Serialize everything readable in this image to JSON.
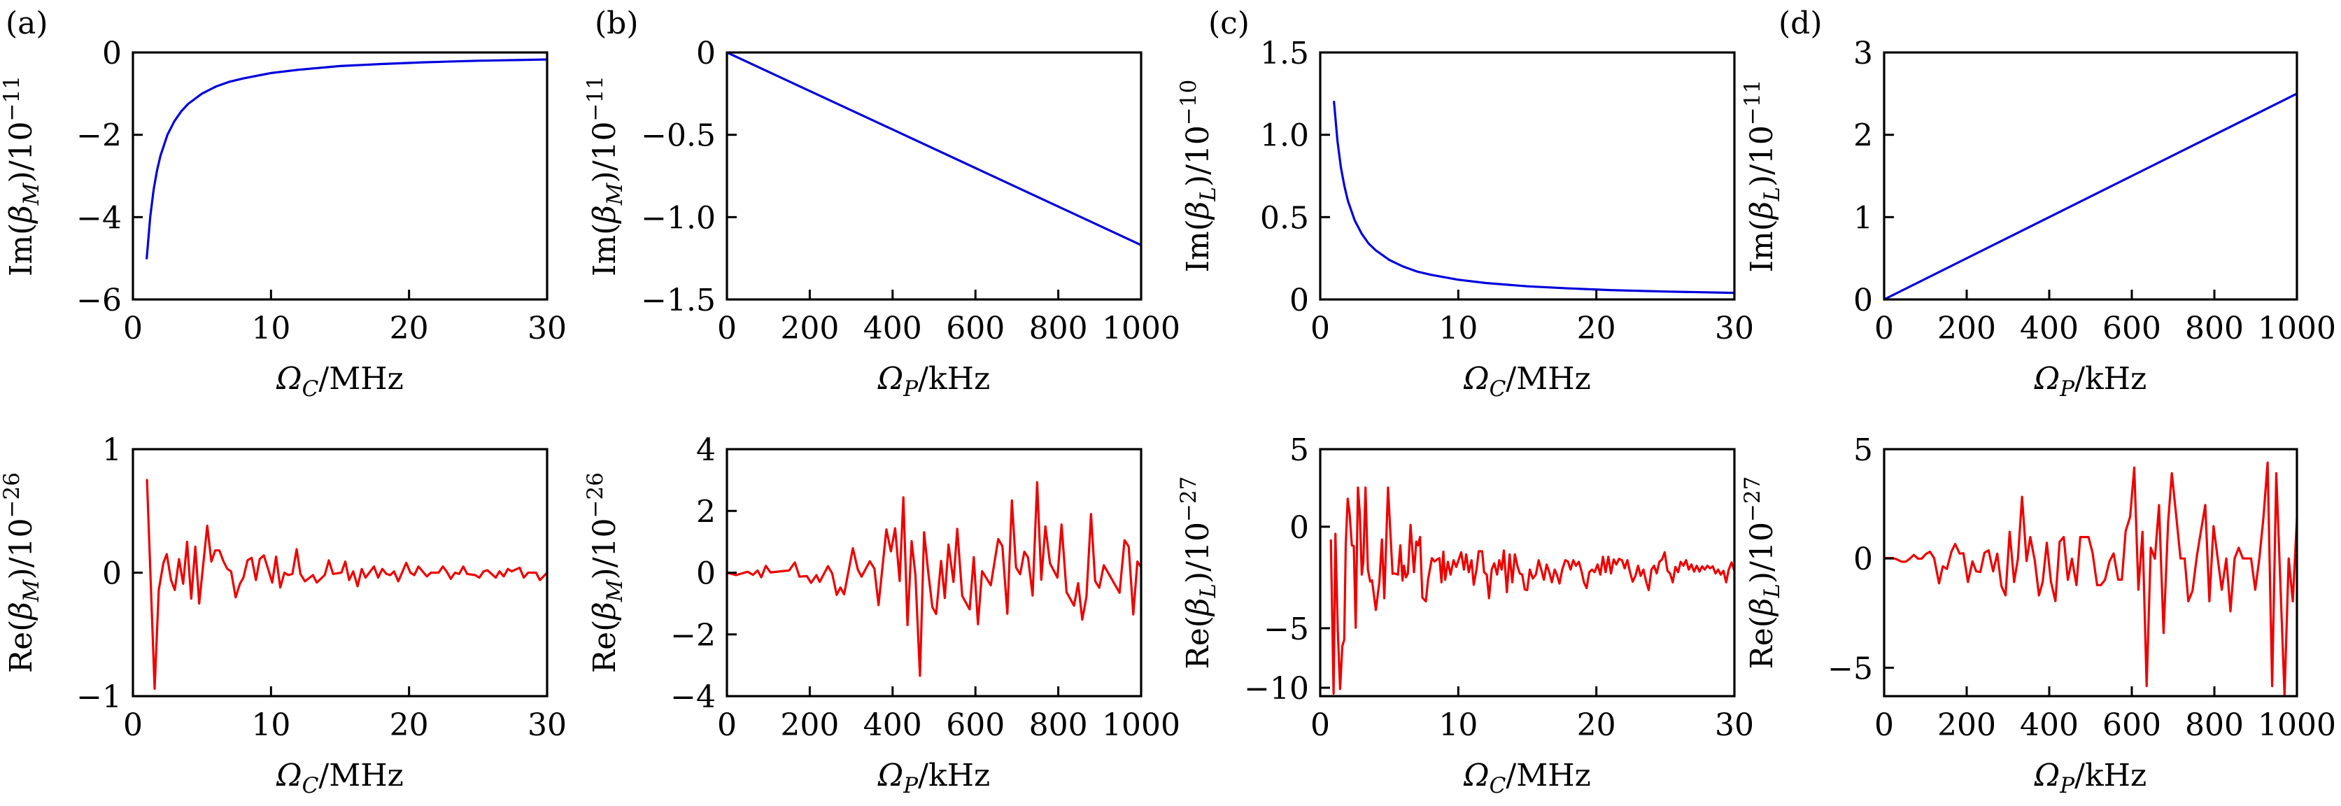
{
  "colors": {
    "imag_line": "#0000dd",
    "real_line": "#ee0000",
    "axes": "#000000"
  },
  "chart_data": [
    {
      "id": "a-top",
      "panel_label": "(a)",
      "type": "line",
      "series_color": "imag_line",
      "xlabel": {
        "symbol": "Ω",
        "sub": "C",
        "unit": "/MHz"
      },
      "ylabel": {
        "pre": "Im(",
        "symbol": "β",
        "sub": "M",
        "post": ")/10",
        "sup": "−11"
      },
      "xlim": [
        0,
        30
      ],
      "ylim": [
        -6,
        0
      ],
      "xticks": [
        0,
        10,
        20,
        30
      ],
      "xtick_labels": [
        "0",
        "10",
        "20",
        "30"
      ],
      "yticks": [
        0,
        -2,
        -4,
        -6
      ],
      "ytick_labels": [
        "0",
        "−2",
        "−4",
        "−6"
      ],
      "x": [
        1,
        1.25,
        1.5,
        1.75,
        2,
        2.5,
        3,
        3.5,
        4,
        5,
        6,
        7,
        8,
        10,
        12,
        15,
        18,
        21,
        25,
        30
      ],
      "y": [
        -5,
        -4,
        -3.33,
        -2.86,
        -2.5,
        -2,
        -1.67,
        -1.43,
        -1.25,
        -1,
        -0.83,
        -0.71,
        -0.63,
        -0.5,
        -0.42,
        -0.33,
        -0.28,
        -0.24,
        -0.2,
        -0.17
      ]
    },
    {
      "id": "b-top",
      "panel_label": "(b)",
      "type": "line",
      "series_color": "imag_line",
      "xlabel": {
        "symbol": "Ω",
        "sub": "P",
        "unit": "/kHz"
      },
      "ylabel": {
        "pre": "Im(",
        "symbol": "β",
        "sub": "M",
        "post": ")/10",
        "sup": "−11"
      },
      "xlim": [
        0,
        1000
      ],
      "ylim": [
        -1.5,
        0
      ],
      "xticks": [
        0,
        200,
        400,
        600,
        800,
        1000
      ],
      "xtick_labels": [
        "0",
        "200",
        "400",
        "600",
        "800",
        "1000"
      ],
      "yticks": [
        0,
        -0.5,
        -1.0,
        -1.5
      ],
      "ytick_labels": [
        "0",
        "−0.5",
        "−1.0",
        "−1.5"
      ],
      "x": [
        0,
        1000
      ],
      "y": [
        0,
        -1.17
      ]
    },
    {
      "id": "c-top",
      "panel_label": "(c)",
      "type": "line",
      "series_color": "imag_line",
      "xlabel": {
        "symbol": "Ω",
        "sub": "C",
        "unit": "/MHz"
      },
      "ylabel": {
        "pre": "Im(",
        "symbol": "β",
        "sub": "L",
        "post": ")/10",
        "sup": "−10"
      },
      "xlim": [
        0,
        30
      ],
      "ylim": [
        0,
        1.5
      ],
      "xticks": [
        0,
        10,
        20,
        30
      ],
      "xtick_labels": [
        "0",
        "10",
        "20",
        "30"
      ],
      "yticks": [
        1.5,
        1.0,
        0.5,
        0
      ],
      "ytick_labels": [
        "1.5",
        "1.0",
        "0.5",
        "0"
      ],
      "x": [
        1,
        1.25,
        1.5,
        1.75,
        2,
        2.5,
        3,
        3.5,
        4,
        5,
        6,
        7,
        8,
        10,
        12,
        15,
        18,
        21,
        25,
        30
      ],
      "y": [
        1.2,
        0.96,
        0.8,
        0.69,
        0.6,
        0.48,
        0.4,
        0.34,
        0.3,
        0.24,
        0.2,
        0.17,
        0.15,
        0.12,
        0.1,
        0.08,
        0.067,
        0.057,
        0.048,
        0.04
      ]
    },
    {
      "id": "d-top",
      "panel_label": "(d)",
      "type": "line",
      "series_color": "imag_line",
      "xlabel": {
        "symbol": "Ω",
        "sub": "P",
        "unit": "/kHz"
      },
      "ylabel": {
        "pre": "Im(",
        "symbol": "β",
        "sub": "L",
        "post": ")/10",
        "sup": "−11"
      },
      "xlim": [
        0,
        1000
      ],
      "ylim": [
        0,
        3
      ],
      "xticks": [
        0,
        200,
        400,
        600,
        800,
        1000
      ],
      "xtick_labels": [
        "0",
        "200",
        "400",
        "600",
        "800",
        "1000"
      ],
      "yticks": [
        3,
        2,
        1,
        0
      ],
      "ytick_labels": [
        "3",
        "2",
        "1",
        "0"
      ],
      "x": [
        0,
        1000
      ],
      "y": [
        0,
        2.5
      ]
    },
    {
      "id": "a-bottom",
      "type": "line",
      "series_color": "real_line",
      "xlabel": {
        "symbol": "Ω",
        "sub": "C",
        "unit": "/MHz"
      },
      "ylabel": {
        "pre": "Re(",
        "symbol": "β",
        "sub": "M",
        "post": ")/10",
        "sup": "−26"
      },
      "xlim": [
        0,
        30
      ],
      "ylim": [
        -1,
        1
      ],
      "xticks": [
        0,
        10,
        20,
        30
      ],
      "xtick_labels": [
        "0",
        "10",
        "20",
        "30"
      ],
      "yticks": [
        1,
        0,
        -1
      ],
      "ytick_labels": [
        "1",
        "0",
        "−1"
      ],
      "x": [
        1.02,
        1.57,
        1.87,
        2.21,
        2.45,
        2.76,
        3.03,
        3.34,
        3.64,
        3.92,
        4.22,
        4.52,
        4.8,
        5.38,
        5.68,
        5.96,
        6.26,
        6.56,
        6.84,
        7.11,
        7.44,
        7.75,
        8.0,
        8.3,
        8.6,
        8.91,
        9.18,
        9.48,
        9.79,
        10.09,
        10.37,
        10.67,
        10.97,
        11.25,
        11.55,
        11.86,
        12.13,
        12.46,
        13.04,
        13.32,
        13.89,
        14.19,
        14.5,
        15.1,
        15.38,
        15.66,
        15.96,
        16.27,
        16.57,
        16.85,
        17.46,
        17.76,
        18.06,
        18.36,
        18.64,
        18.91,
        19.22,
        19.8,
        20.1,
        20.38,
        20.68,
        21.29,
        21.59,
        22.14,
        22.45,
        22.72,
        23.02,
        23.33,
        23.63,
        23.93,
        24.21,
        24.79,
        25.09,
        25.4,
        25.67,
        26.28,
        26.55,
        26.86,
        27.16,
        27.43,
        28.01,
        28.31,
        28.62,
        29.2,
        29.48,
        30.0
      ],
      "y": [
        0.75,
        -0.94,
        -0.14,
        0.08,
        0.15,
        -0.06,
        -0.14,
        0.11,
        -0.09,
        0.25,
        -0.21,
        0.21,
        -0.25,
        0.38,
        0.09,
        0.18,
        0.18,
        0.09,
        0.03,
        0.01,
        -0.2,
        -0.09,
        -0.04,
        0.1,
        0.12,
        -0.06,
        0.11,
        0.14,
        0.03,
        -0.08,
        0.13,
        -0.12,
        0.0,
        -0.02,
        -0.01,
        0.19,
        -0.01,
        -0.07,
        -0.02,
        -0.08,
        -0.02,
        0.1,
        -0.01,
        0.0,
        0.09,
        -0.06,
        0.01,
        -0.11,
        0.03,
        -0.04,
        0.05,
        -0.04,
        0.03,
        -0.01,
        -0.02,
        0.01,
        -0.07,
        0.08,
        0.0,
        -0.02,
        0.05,
        -0.03,
        0.0,
        0.0,
        0.05,
        0.01,
        -0.05,
        0.0,
        -0.01,
        0.05,
        -0.01,
        -0.02,
        -0.04,
        0.01,
        0.02,
        -0.04,
        0.01,
        -0.03,
        0.03,
        0.01,
        0.04,
        -0.04,
        0.0,
        0.0,
        -0.06,
        0.0
      ]
    },
    {
      "id": "b-bottom",
      "type": "line",
      "series_color": "real_line",
      "xlabel": {
        "symbol": "Ω",
        "sub": "P",
        "unit": "/kHz"
      },
      "ylabel": {
        "pre": "Re(",
        "symbol": "β",
        "sub": "M",
        "post": ")/10",
        "sup": "−26"
      },
      "xlim": [
        0,
        1000
      ],
      "ylim": [
        -4,
        4
      ],
      "xticks": [
        0,
        200,
        400,
        600,
        800,
        1000
      ],
      "xtick_labels": [
        "0",
        "200",
        "400",
        "600",
        "800",
        "1000"
      ],
      "yticks": [
        4,
        2,
        0,
        -2,
        -4
      ],
      "ytick_labels": [
        "4",
        "2",
        "0",
        "−2",
        "−4"
      ],
      "x": [
        0,
        22,
        50,
        63,
        74,
        83,
        94,
        105,
        150,
        164,
        175,
        193,
        203,
        216,
        224,
        244,
        254,
        265,
        274,
        283,
        304,
        316,
        325,
        345,
        356,
        366,
        385,
        396,
        406,
        417,
        426,
        436,
        446,
        455,
        466,
        476,
        486,
        496,
        505,
        517,
        526,
        535,
        547,
        556,
        568,
        586,
        596,
        606,
        616,
        637,
        655,
        665,
        677,
        688,
        698,
        708,
        718,
        727,
        738,
        749,
        759,
        769,
        780,
        798,
        808,
        820,
        838,
        848,
        858,
        868,
        879,
        889,
        899,
        910,
        948,
        960,
        970,
        981,
        991,
        1000
      ],
      "y": [
        0,
        -0.08,
        0.03,
        -0.07,
        0.07,
        -0.15,
        0.22,
        0.01,
        0.07,
        0.33,
        -0.13,
        -0.11,
        -0.33,
        -0.08,
        -0.3,
        0.21,
        -0.02,
        -0.72,
        -0.48,
        -0.7,
        0.79,
        0.1,
        -0.13,
        0.37,
        0.13,
        -1.05,
        1.4,
        0.69,
        1.44,
        -0.27,
        2.44,
        -1.7,
        1.02,
        -0.07,
        -3.34,
        1.31,
        0.02,
        -1.11,
        -1.34,
        0.38,
        -0.82,
        0.91,
        -0.3,
        1.42,
        -0.75,
        -1.19,
        0.5,
        -1.67,
        0.05,
        -0.41,
        1.09,
        0.86,
        -1.33,
        2.34,
        0.17,
        -0.05,
        0.68,
        0.49,
        -0.74,
        2.93,
        -0.23,
        1.5,
        0.3,
        -0.16,
        1.56,
        -0.63,
        -1.07,
        -0.34,
        -1.52,
        -0.77,
        1.9,
        -0.27,
        -0.49,
        0.24,
        -0.65,
        1.05,
        0.85,
        -1.35,
        0.36,
        0.18
      ]
    },
    {
      "id": "c-bottom",
      "type": "line",
      "series_color": "real_line",
      "xlabel": {
        "symbol": "Ω",
        "sub": "C",
        "unit": "/MHz"
      },
      "ylabel": {
        "pre": "Re(",
        "symbol": "β",
        "sub": "L",
        "post": ")/10",
        "sup": "−27"
      },
      "xlim": [
        0,
        30
      ],
      "ylim": [
        -12,
        5
      ],
      "xticks": [
        0,
        10,
        20,
        30
      ],
      "xtick_labels": [
        "0",
        "10",
        "20",
        "30"
      ],
      "yticks": [
        5,
        0,
        -5,
        -10
      ],
      "ytick_labels": [
        "5",
        "0",
        "−5",
        "−10"
      ],
      "y_axis_note": "tick spacing is non-uniform in the figure",
      "x": [
        0.77,
        0.97,
        1.1,
        1.27,
        1.44,
        1.6,
        1.74,
        1.85,
        1.99,
        2.13,
        2.29,
        2.43,
        2.57,
        2.73,
        2.87,
        3.01,
        3.12,
        3.28,
        3.45,
        3.62,
        3.75,
        4.03,
        4.28,
        4.47,
        4.64,
        4.91,
        5.24,
        5.38,
        5.63,
        5.8,
        5.96,
        6.07,
        6.21,
        6.35,
        6.54,
        6.79,
        6.96,
        7.09,
        7.23,
        7.4,
        7.65,
        7.81,
        8.09,
        8.28,
        8.47,
        8.64,
        8.78,
        8.92,
        9.05,
        9.25,
        9.44,
        9.66,
        9.85,
        10.05,
        10.21,
        10.41,
        10.57,
        10.76,
        10.96,
        11.12,
        11.32,
        11.48,
        11.73,
        11.87,
        12.06,
        12.23,
        12.42,
        12.61,
        12.81,
        12.97,
        13.14,
        13.3,
        13.52,
        13.72,
        13.91,
        14.1,
        14.3,
        14.46,
        14.63,
        14.82,
        14.99,
        15.18,
        15.4,
        15.62,
        15.82,
        16.01,
        16.2,
        16.4,
        16.59,
        16.78,
        16.98,
        17.14,
        17.33,
        17.53,
        17.75,
        17.94,
        18.13,
        18.33,
        18.52,
        18.74,
        18.93,
        19.1,
        19.29,
        19.49,
        19.68,
        19.87,
        20.09,
        20.29,
        20.48,
        20.67,
        20.87,
        21.06,
        21.26,
        21.45,
        21.64,
        21.86,
        22.05,
        22.25,
        22.44,
        22.63,
        22.83,
        23.02,
        23.21,
        23.41,
        23.6,
        23.79,
        23.99,
        24.18,
        24.37,
        24.57,
        24.76,
        24.95,
        25.15,
        25.34,
        25.53,
        25.73,
        25.92,
        26.11,
        26.31,
        26.5,
        26.69,
        26.89,
        27.08,
        27.27,
        27.47,
        27.66,
        27.85,
        28.05,
        28.24,
        28.43,
        28.63,
        28.82,
        29.01,
        29.21,
        29.4,
        29.59,
        29.79,
        30.0
      ],
      "y": [
        -0.67,
        -11.4,
        -0.35,
        -5.2,
        -10.3,
        -6.5,
        -5.96,
        -0.85,
        1.81,
        0.86,
        -0.92,
        -0.95,
        -4.97,
        2.53,
        0.86,
        -2.36,
        -1.73,
        2.53,
        -2.11,
        -2.7,
        -2.64,
        -4.1,
        -2.74,
        -0.63,
        -3.52,
        2.53,
        -2.32,
        -2.3,
        -2.36,
        -0.92,
        -2.65,
        -1.92,
        -2.49,
        -2.3,
        0.12,
        -2.24,
        -0.73,
        -0.92,
        -0.5,
        -3.49,
        -3.68,
        -2.61,
        -1.55,
        -1.71,
        -1.61,
        -1.55,
        -2.74,
        -1.23,
        -2.61,
        -1.73,
        -2.36,
        -1.65,
        -1.98,
        -1.58,
        -1.26,
        -2.11,
        -1.36,
        -2.24,
        -1.65,
        -2.86,
        -2.11,
        -1.21,
        -1.21,
        -2.24,
        -2.36,
        -3.52,
        -2.11,
        -1.8,
        -2.36,
        -1.65,
        -2.11,
        -1.17,
        -3.22,
        -1.36,
        -2.74,
        -1.36,
        -1.98,
        -2.3,
        -2.36,
        -3.09,
        -3.12,
        -2.11,
        -2.55,
        -2.36,
        -1.65,
        -2.11,
        -2.61,
        -1.86,
        -2.24,
        -2.74,
        -2.11,
        -2.36,
        -2.8,
        -2.11,
        -1.65,
        -1.71,
        -2.11,
        -1.65,
        -1.92,
        -1.73,
        -2.21,
        -2.74,
        -3.02,
        -2.24,
        -2.11,
        -2.24,
        -1.86,
        -2.36,
        -1.48,
        -2.24,
        -1.48,
        -2.3,
        -1.61,
        -1.86,
        -1.58,
        -1.65,
        -2.05,
        -1.65,
        -2.24,
        -2.71,
        -2.42,
        -1.92,
        -2.42,
        -2.11,
        -2.68,
        -3.12,
        -2.11,
        -1.92,
        -2.3,
        -1.73,
        -1.61,
        -1.26,
        -2.17,
        -2.3,
        -2.74,
        -1.98,
        -2.24,
        -1.73,
        -1.92,
        -1.65,
        -2.11,
        -1.86,
        -2.21,
        -1.92,
        -2.21,
        -1.95,
        -2.11,
        -1.92,
        -2.05,
        -1.95,
        -2.3,
        -2.11,
        -2.36,
        -2.17,
        -2.74,
        -2.11,
        -1.76,
        -2.17
      ]
    },
    {
      "id": "d-bottom",
      "type": "line",
      "series_color": "real_line",
      "xlabel": {
        "symbol": "Ω",
        "sub": "P",
        "unit": "/kHz"
      },
      "ylabel": {
        "pre": "Re(",
        "symbol": "β",
        "sub": "L",
        "post": ")/10",
        "sup": "−27"
      },
      "xlim": [
        0,
        1000
      ],
      "ylim": [
        -6.3,
        5
      ],
      "xticks": [
        0,
        200,
        400,
        600,
        800,
        1000
      ],
      "xtick_labels": [
        "0",
        "200",
        "400",
        "600",
        "800",
        "1000"
      ],
      "yticks": [
        5,
        0,
        -5
      ],
      "ytick_labels": [
        "5",
        "0",
        "−5"
      ],
      "x": [
        0,
        20,
        29,
        43,
        52,
        61,
        72,
        82,
        91,
        101,
        111,
        121,
        133,
        142,
        152,
        163,
        172,
        183,
        192,
        203,
        214,
        223,
        233,
        243,
        253,
        264,
        274,
        284,
        294,
        304,
        315,
        324,
        334,
        345,
        354,
        365,
        375,
        384,
        394,
        404,
        415,
        425,
        435,
        445,
        455,
        466,
        475,
        495,
        505,
        516,
        525,
        535,
        546,
        556,
        567,
        576,
        585,
        596,
        606,
        616,
        626,
        636,
        646,
        656,
        666,
        677,
        688,
        697,
        707,
        718,
        728,
        737,
        747,
        758,
        778,
        788,
        798,
        818,
        829,
        839,
        849,
        859,
        869,
        889,
        899,
        909,
        919,
        929,
        940,
        950,
        970,
        980,
        990,
        1000
      ],
      "y": [
        0.02,
        0.02,
        -0.03,
        -0.15,
        -0.15,
        -0.03,
        0.16,
        -0.01,
        -0.01,
        0.2,
        0.31,
        0.02,
        -1.14,
        -0.36,
        -0.48,
        0.31,
        0.66,
        0.22,
        0.24,
        -1.08,
        -0.13,
        -0.59,
        -0.62,
        0.26,
        0.37,
        -0.59,
        0.22,
        -1.26,
        -1.69,
        1.22,
        -1.08,
        -0.01,
        2.82,
        -0.12,
        0.98,
        -0.09,
        -1.69,
        -1.08,
        0.72,
        -1.06,
        -1.95,
        0.76,
        0.98,
        -0.98,
        -0.01,
        -1.22,
        0.98,
        0.98,
        0.26,
        -1.22,
        -1.22,
        -0.98,
        -0.13,
        0.23,
        -0.97,
        -0.97,
        1.25,
        1.91,
        4.16,
        -1.43,
        1.22,
        -5.84,
        0.49,
        -0.01,
        2.44,
        -3.41,
        1.65,
        3.9,
        2.06,
        0,
        0,
        -1.96,
        -1.49,
        0.16,
        2.45,
        -1.96,
        1.48,
        -1.43,
        0,
        -2.42,
        0,
        0.49,
        0,
        0,
        -1.43,
        0,
        1.89,
        4.39,
        -5.84,
        3.9,
        -6.27,
        0,
        -1.96,
        1.83
      ]
    }
  ]
}
